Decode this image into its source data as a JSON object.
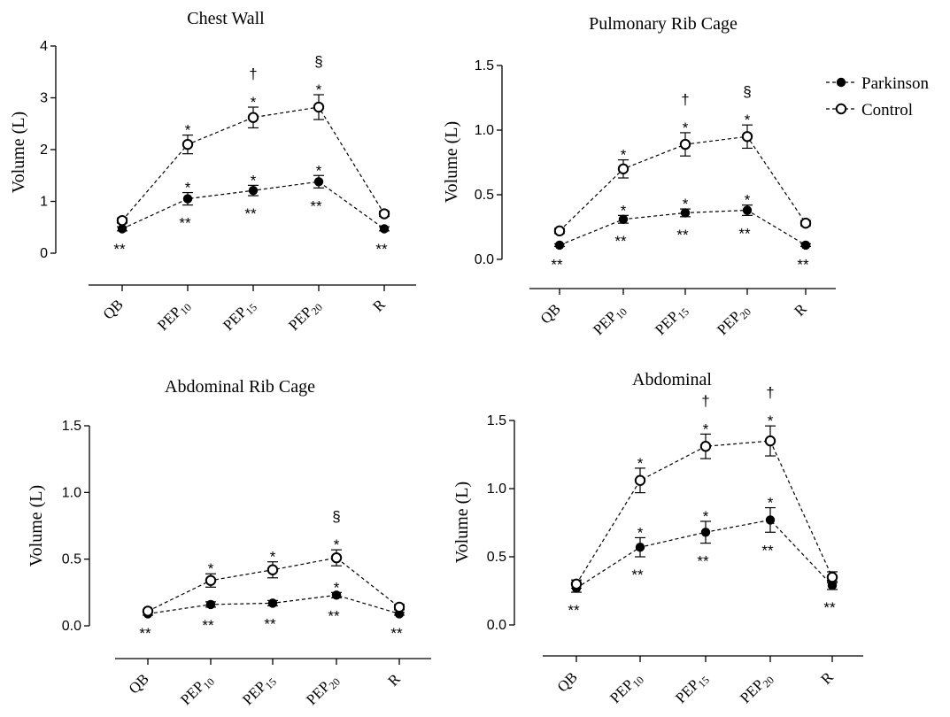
{
  "legend": {
    "series": [
      {
        "name": "Parkinson",
        "marker": "filled-circle"
      },
      {
        "name": "Control",
        "marker": "open-circle"
      }
    ]
  },
  "chart_data": [
    {
      "type": "line",
      "title": "Chest Wall",
      "ylabel": "Volume (L)",
      "xlabel": "",
      "categories": [
        {
          "base": "QB",
          "sub": ""
        },
        {
          "base": "PEP",
          "sub": "10"
        },
        {
          "base": "PEP",
          "sub": "15"
        },
        {
          "base": "PEP",
          "sub": "20"
        },
        {
          "base": "R",
          "sub": ""
        }
      ],
      "ylim": [
        0,
        4
      ],
      "yticks": [
        "0",
        "1",
        "2",
        "3",
        "4"
      ],
      "yticks_values": [
        0,
        1,
        2,
        3,
        4
      ],
      "series": [
        {
          "name": "Parkinson",
          "values": [
            0.47,
            1.05,
            1.21,
            1.38,
            0.47
          ],
          "err": [
            0.04,
            0.12,
            0.1,
            0.12,
            0.04
          ]
        },
        {
          "name": "Control",
          "values": [
            0.63,
            2.1,
            2.62,
            2.82,
            0.76
          ],
          "err": [
            0.05,
            0.18,
            0.2,
            0.24,
            0.05
          ]
        }
      ],
      "annotations": {
        "control_above": [
          [],
          [
            "*"
          ],
          [
            "*",
            "†"
          ],
          [
            "*",
            "§"
          ],
          []
        ],
        "parkinson_above": [
          [],
          [
            "*"
          ],
          [
            "*"
          ],
          [
            "*"
          ],
          []
        ],
        "parkinson_below": [
          "**",
          "**",
          "**",
          "**",
          "**"
        ]
      }
    },
    {
      "type": "line",
      "title": "Pulmonary Rib Cage",
      "ylabel": "Volume (L)",
      "xlabel": "",
      "categories": [
        {
          "base": "QB",
          "sub": ""
        },
        {
          "base": "PEP",
          "sub": "10"
        },
        {
          "base": "PEP",
          "sub": "15"
        },
        {
          "base": "PEP",
          "sub": "20"
        },
        {
          "base": "R",
          "sub": ""
        }
      ],
      "ylim": [
        0,
        1.5
      ],
      "yticks": [
        "0.0",
        "0.5",
        "1.0",
        "1.5"
      ],
      "yticks_values": [
        0,
        0.5,
        1.0,
        1.5
      ],
      "series": [
        {
          "name": "Parkinson",
          "values": [
            0.11,
            0.31,
            0.36,
            0.38,
            0.11
          ],
          "err": [
            0.01,
            0.03,
            0.03,
            0.04,
            0.01
          ]
        },
        {
          "name": "Control",
          "values": [
            0.22,
            0.7,
            0.89,
            0.95,
            0.28
          ],
          "err": [
            0.02,
            0.07,
            0.09,
            0.09,
            0.02
          ]
        }
      ],
      "annotations": {
        "control_above": [
          [],
          [
            "*"
          ],
          [
            "*",
            "†"
          ],
          [
            "*",
            "§"
          ],
          []
        ],
        "parkinson_above": [
          [],
          [
            "*"
          ],
          [
            "*"
          ],
          [
            "*"
          ],
          []
        ],
        "parkinson_below": [
          "**",
          "**",
          "**",
          "**",
          "**"
        ]
      }
    },
    {
      "type": "line",
      "title": "Abdominal Rib Cage",
      "ylabel": "Volume (L)",
      "xlabel": "",
      "categories": [
        {
          "base": "QB",
          "sub": ""
        },
        {
          "base": "PEP",
          "sub": "10"
        },
        {
          "base": "PEP",
          "sub": "15"
        },
        {
          "base": "PEP",
          "sub": "20"
        },
        {
          "base": "R",
          "sub": ""
        }
      ],
      "ylim": [
        0,
        1.5
      ],
      "yticks": [
        "0.0",
        "0.5",
        "1.0",
        "1.5"
      ],
      "yticks_values": [
        0,
        0.5,
        1.0,
        1.5
      ],
      "series": [
        {
          "name": "Parkinson",
          "values": [
            0.09,
            0.16,
            0.17,
            0.23,
            0.09
          ],
          "err": [
            0.01,
            0.02,
            0.02,
            0.02,
            0.01
          ]
        },
        {
          "name": "Control",
          "values": [
            0.11,
            0.34,
            0.42,
            0.51,
            0.14
          ],
          "err": [
            0.01,
            0.05,
            0.06,
            0.06,
            0.02
          ]
        }
      ],
      "annotations": {
        "control_above": [
          [],
          [
            "*"
          ],
          [
            "*"
          ],
          [
            "*",
            "§"
          ],
          []
        ],
        "parkinson_above": [
          [],
          [],
          [],
          [
            "*"
          ],
          []
        ],
        "parkinson_below": [
          "**",
          "**",
          "**",
          "**",
          "**"
        ]
      }
    },
    {
      "type": "line",
      "title": "Abdominal",
      "ylabel": "Volume (L)",
      "xlabel": "",
      "categories": [
        {
          "base": "QB",
          "sub": ""
        },
        {
          "base": "PEP",
          "sub": "10"
        },
        {
          "base": "PEP",
          "sub": "15"
        },
        {
          "base": "PEP",
          "sub": "20"
        },
        {
          "base": "R",
          "sub": ""
        }
      ],
      "ylim": [
        0,
        1.5
      ],
      "yticks": [
        "0.0",
        "0.5",
        "1.0",
        "1.5"
      ],
      "yticks_values": [
        0,
        0.5,
        1.0,
        1.5
      ],
      "series": [
        {
          "name": "Parkinson",
          "values": [
            0.27,
            0.57,
            0.68,
            0.77,
            0.29
          ],
          "err": [
            0.03,
            0.07,
            0.08,
            0.09,
            0.03
          ]
        },
        {
          "name": "Control",
          "values": [
            0.3,
            1.06,
            1.31,
            1.35,
            0.35
          ],
          "err": [
            0.03,
            0.09,
            0.09,
            0.11,
            0.04
          ]
        }
      ],
      "annotations": {
        "control_above": [
          [],
          [
            "*"
          ],
          [
            "*",
            "†"
          ],
          [
            "*",
            "†"
          ],
          []
        ],
        "parkinson_above": [
          [],
          [
            "*"
          ],
          [
            "*"
          ],
          [
            "*"
          ],
          []
        ],
        "parkinson_below": [
          "**",
          "**",
          "**",
          "**",
          "**"
        ]
      }
    }
  ]
}
